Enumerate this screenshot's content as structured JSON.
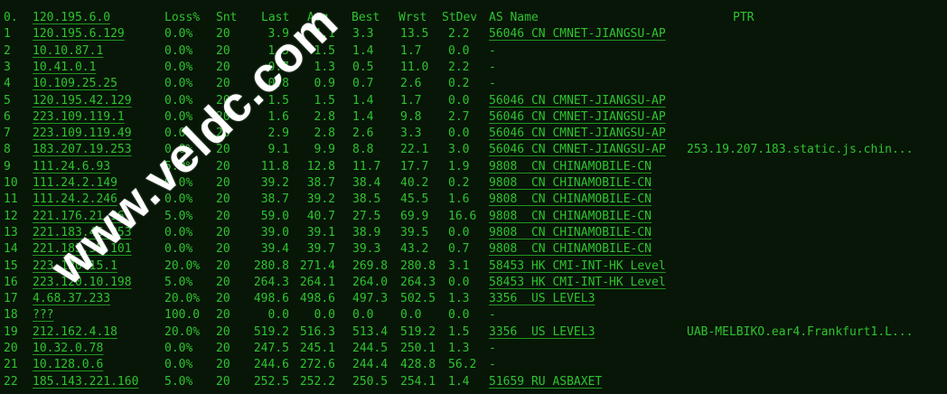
{
  "terminal": {
    "watermark": "www.veldc.com",
    "colors": {
      "background": "#071607",
      "text": "#2fc32f",
      "underline": "#28aa28",
      "watermark": "#ffffff"
    },
    "header": {
      "hop": "0.",
      "ip": "120.195.6.0",
      "loss": "Loss%",
      "snt": "Snt",
      "last": "Last",
      "avg": "Avg",
      "best": "Best",
      "wrst": "Wrst",
      "stdev": "StDev",
      "asname": "AS Name",
      "ptr": "PTR"
    },
    "rows": [
      {
        "hop": "1",
        "ip": "120.195.6.129",
        "loss": "0.0%",
        "snt": "20",
        "last": "3.9",
        "avg": "4.1",
        "best": "3.3",
        "wrst": "13.5",
        "stdev": "2.2",
        "asname": "56046 CN CMNET-JIANGSU-AP",
        "ptr": ""
      },
      {
        "hop": "2",
        "ip": "10.10.87.1",
        "loss": "0.0%",
        "snt": "20",
        "last": "1.5",
        "avg": "1.5",
        "best": "1.4",
        "wrst": "1.7",
        "stdev": "0.0",
        "asname": "-",
        "ptr": ""
      },
      {
        "hop": "3",
        "ip": "10.41.0.1",
        "loss": "0.0%",
        "snt": "20",
        "last": "0.7",
        "avg": "1.3",
        "best": "0.5",
        "wrst": "11.0",
        "stdev": "2.2",
        "asname": "-",
        "ptr": ""
      },
      {
        "hop": "4",
        "ip": "10.109.25.25",
        "loss": "0.0%",
        "snt": "20",
        "last": "0.8",
        "avg": "0.9",
        "best": "0.7",
        "wrst": "2.6",
        "stdev": "0.2",
        "asname": "-",
        "ptr": ""
      },
      {
        "hop": "5",
        "ip": "120.195.42.129",
        "loss": "0.0%",
        "snt": "20",
        "last": "1.5",
        "avg": "1.5",
        "best": "1.4",
        "wrst": "1.7",
        "stdev": "0.0",
        "asname": "56046 CN CMNET-JIANGSU-AP",
        "ptr": ""
      },
      {
        "hop": "6",
        "ip": "223.109.119.1",
        "loss": "0.0%",
        "snt": "20",
        "last": "1.6",
        "avg": "2.8",
        "best": "1.4",
        "wrst": "9.8",
        "stdev": "2.7",
        "asname": "56046 CN CMNET-JIANGSU-AP",
        "ptr": ""
      },
      {
        "hop": "7",
        "ip": "223.109.119.49",
        "loss": "0.0%",
        "snt": "20",
        "last": "2.9",
        "avg": "2.8",
        "best": "2.6",
        "wrst": "3.3",
        "stdev": "0.0",
        "asname": "56046 CN CMNET-JIANGSU-AP",
        "ptr": ""
      },
      {
        "hop": "8",
        "ip": "183.207.19.253",
        "loss": "0.0%",
        "snt": "20",
        "last": "9.1",
        "avg": "9.9",
        "best": "8.8",
        "wrst": "22.1",
        "stdev": "3.0",
        "asname": "56046 CN CMNET-JIANGSU-AP",
        "ptr": "253.19.207.183.static.js.chin..."
      },
      {
        "hop": "9",
        "ip": "111.24.6.93",
        "loss": "5.0%",
        "snt": "20",
        "last": "11.8",
        "avg": "12.8",
        "best": "11.7",
        "wrst": "17.7",
        "stdev": "1.9",
        "asname": "9808  CN CHINAMOBILE-CN",
        "ptr": ""
      },
      {
        "hop": "10",
        "ip": "111.24.2.149",
        "loss": "0.0%",
        "snt": "20",
        "last": "39.2",
        "avg": "38.7",
        "best": "38.4",
        "wrst": "40.2",
        "stdev": "0.2",
        "asname": "9808  CN CHINAMOBILE-CN",
        "ptr": ""
      },
      {
        "hop": "11",
        "ip": "111.24.2.246",
        "loss": "0.0%",
        "snt": "20",
        "last": "38.7",
        "avg": "39.2",
        "best": "38.5",
        "wrst": "45.5",
        "stdev": "1.6",
        "asname": "9808  CN CHINAMOBILE-CN",
        "ptr": ""
      },
      {
        "hop": "12",
        "ip": "221.176.21.96",
        "loss": "5.0%",
        "snt": "20",
        "last": "59.0",
        "avg": "40.7",
        "best": "27.5",
        "wrst": "69.9",
        "stdev": "16.6",
        "asname": "9808  CN CHINAMOBILE-CN",
        "ptr": ""
      },
      {
        "hop": "13",
        "ip": "221.183.46.253",
        "loss": "0.0%",
        "snt": "20",
        "last": "39.0",
        "avg": "39.1",
        "best": "38.9",
        "wrst": "39.5",
        "stdev": "0.0",
        "asname": "9808  CN CHINAMOBILE-CN",
        "ptr": ""
      },
      {
        "hop": "14",
        "ip": "221.183.55.101",
        "loss": "0.0%",
        "snt": "20",
        "last": "39.4",
        "avg": "39.7",
        "best": "39.3",
        "wrst": "43.2",
        "stdev": "0.7",
        "asname": "9808  CN CHINAMOBILE-CN",
        "ptr": ""
      },
      {
        "hop": "15",
        "ip": "223.120.15.1",
        "loss": "20.0%",
        "snt": "20",
        "last": "280.8",
        "avg": "271.4",
        "best": "269.8",
        "wrst": "280.8",
        "stdev": "3.1",
        "asname": "58453 HK CMI-INT-HK Level",
        "ptr": ""
      },
      {
        "hop": "16",
        "ip": "223.120.10.198",
        "loss": "5.0%",
        "snt": "20",
        "last": "264.3",
        "avg": "264.1",
        "best": "264.0",
        "wrst": "264.3",
        "stdev": "0.0",
        "asname": "58453 HK CMI-INT-HK Level",
        "ptr": ""
      },
      {
        "hop": "17",
        "ip": "4.68.37.233",
        "loss": "20.0%",
        "snt": "20",
        "last": "498.6",
        "avg": "498.6",
        "best": "497.3",
        "wrst": "502.5",
        "stdev": "1.3",
        "asname": "3356  US LEVEL3",
        "ptr": ""
      },
      {
        "hop": "18",
        "ip": "???",
        "loss": "100.0",
        "snt": "20",
        "last": "0.0",
        "avg": "0.0",
        "best": "0.0",
        "wrst": "0.0",
        "stdev": "0.0",
        "asname": "-",
        "ptr": ""
      },
      {
        "hop": "19",
        "ip": "212.162.4.18",
        "loss": "20.0%",
        "snt": "20",
        "last": "519.2",
        "avg": "516.3",
        "best": "513.4",
        "wrst": "519.2",
        "stdev": "1.5",
        "asname": "3356  US LEVEL3",
        "ptr": "UAB-MELBIKO.ear4.Frankfurt1.L..."
      },
      {
        "hop": "20",
        "ip": "10.32.0.78",
        "loss": "0.0%",
        "snt": "20",
        "last": "247.5",
        "avg": "245.1",
        "best": "244.5",
        "wrst": "250.1",
        "stdev": "1.3",
        "asname": "-",
        "ptr": ""
      },
      {
        "hop": "21",
        "ip": "10.128.0.6",
        "loss": "0.0%",
        "snt": "20",
        "last": "244.6",
        "avg": "272.6",
        "best": "244.4",
        "wrst": "428.8",
        "stdev": "56.2",
        "asname": "-",
        "ptr": ""
      },
      {
        "hop": "22",
        "ip": "185.143.221.160",
        "loss": "5.0%",
        "snt": "20",
        "last": "252.5",
        "avg": "252.2",
        "best": "250.5",
        "wrst": "254.1",
        "stdev": "1.4",
        "asname": "51659 RU ASBAXET",
        "ptr": ""
      }
    ]
  }
}
